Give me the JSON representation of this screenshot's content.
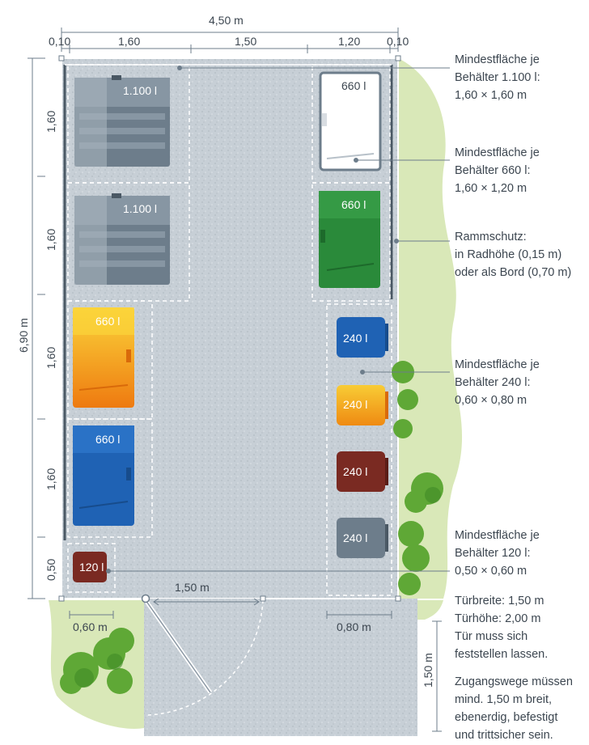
{
  "dimensions": {
    "total_width": "4,50 m",
    "top_segments": [
      "0,10",
      "1,60",
      "1,50",
      "1,20",
      "0,10"
    ],
    "total_depth": "6,90 m",
    "left_segments": [
      "1,60",
      "1,60",
      "1,60",
      "1,60",
      "0,50"
    ],
    "door_width": "1,50 m",
    "width_120": "0,60 m",
    "width_240": "0,80 m",
    "path_width": "1,50 m"
  },
  "containers": {
    "c1100_top": "1.100 l",
    "c1100_bottom": "1.100 l",
    "c660_white": "660 l",
    "c660_green": "660 l",
    "c660_yellow": "660 l",
    "c660_blue": "660 l",
    "c240_blue": "240 l",
    "c240_yellow": "240 l",
    "c240_brown": "240 l",
    "c240_grey": "240 l",
    "c120": "120 l"
  },
  "annotations": {
    "a1100": [
      "Mindestfläche je",
      "Behälter 1.100 l:",
      "1,60 × 1,60 m"
    ],
    "a660": [
      "Mindestfläche je",
      "Behälter 660 l:",
      "1,60 × 1,20 m"
    ],
    "ramm": [
      "Rammschutz:",
      "in Radhöhe (0,15 m)",
      "oder als Bord (0,70 m)"
    ],
    "a240": [
      "Mindestfläche je",
      "Behälter 240 l:",
      "0,60 × 0,80 m"
    ],
    "a120": [
      "Mindestfläche je",
      "Behälter 120 l:",
      "0,50 × 0,60 m"
    ],
    "door": [
      "Türbreite: 1,50 m",
      "Türhöhe: 2,00 m",
      "Tür muss sich",
      "feststellen lassen."
    ],
    "path": [
      "Zugangswege müssen",
      "mind. 1,50 m breit,",
      "ebenerdig, befestigt",
      "und trittsicher sein."
    ]
  },
  "colors": {
    "floor": "#c9d0d6",
    "greenery": "#d9e8b8",
    "bin_grey": "#6d7d8b",
    "bin_green": "#2a8a3a",
    "bin_yellow": "#f2a31b",
    "bin_blue": "#1f62b4",
    "bin_brown": "#7a2a22"
  }
}
